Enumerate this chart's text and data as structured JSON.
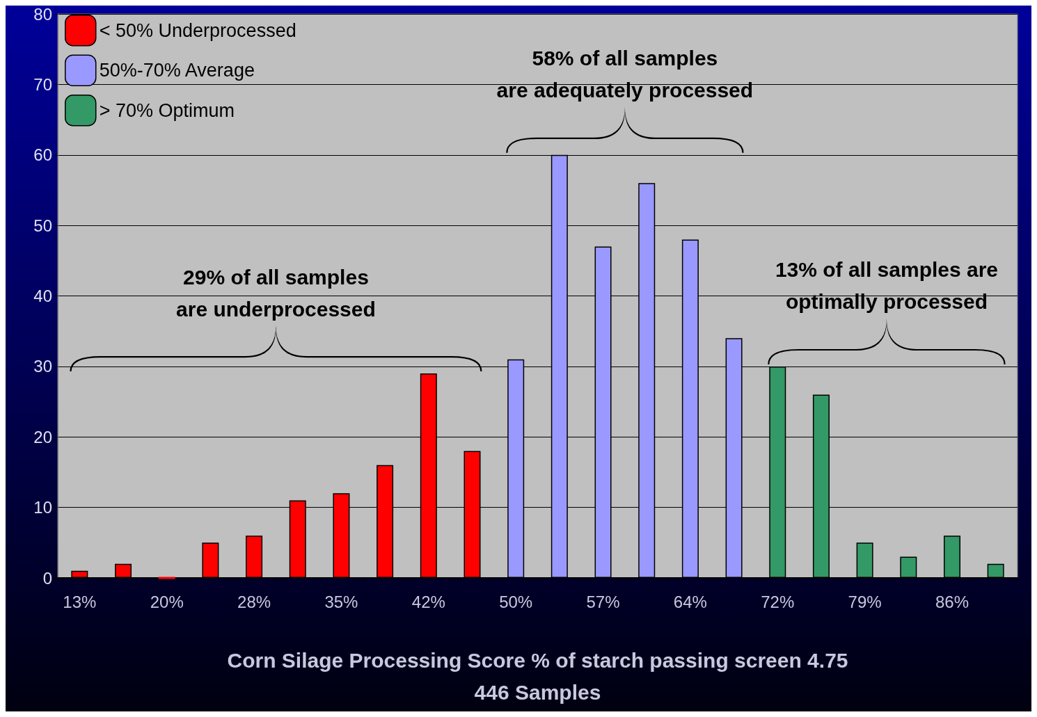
{
  "chart_data": {
    "type": "bar",
    "categories": [
      "13%",
      null,
      "20%",
      null,
      "28%",
      null,
      "35%",
      null,
      "42%",
      null,
      "50%",
      null,
      "57%",
      null,
      "64%",
      null,
      "72%",
      null,
      "79%",
      null,
      "86%",
      null
    ],
    "series": [
      {
        "name": "< 50% Underprocessed",
        "color": "#ff0000",
        "values": [
          1,
          2,
          0,
          5,
          6,
          11,
          12,
          16,
          29,
          18,
          null,
          null,
          null,
          null,
          null,
          null,
          null,
          null,
          null,
          null,
          null,
          null
        ]
      },
      {
        "name": "50%-70% Average",
        "color": "#9999ff",
        "values": [
          null,
          null,
          null,
          null,
          null,
          null,
          null,
          null,
          null,
          null,
          31,
          60,
          47,
          56,
          48,
          34,
          null,
          null,
          null,
          null,
          null,
          null
        ]
      },
      {
        "name": "> 70% Optimum",
        "color": "#339966",
        "values": [
          null,
          null,
          null,
          null,
          null,
          null,
          null,
          null,
          null,
          null,
          null,
          null,
          null,
          null,
          null,
          null,
          30,
          26,
          5,
          3,
          6,
          2
        ]
      }
    ],
    "xlabel": "Corn Silage Processing Score % of starch passing screen 4.75\n446 Samples",
    "ylim": [
      0,
      80
    ],
    "yticks": [
      0,
      10,
      20,
      30,
      40,
      50,
      60,
      70,
      80
    ],
    "grid": "y",
    "legend": "top left",
    "annotations": [
      "29% of all samples\nare underprocessed",
      "58% of all samples\nare adequately processed",
      "13% of all samples are\noptimally processed"
    ]
  }
}
